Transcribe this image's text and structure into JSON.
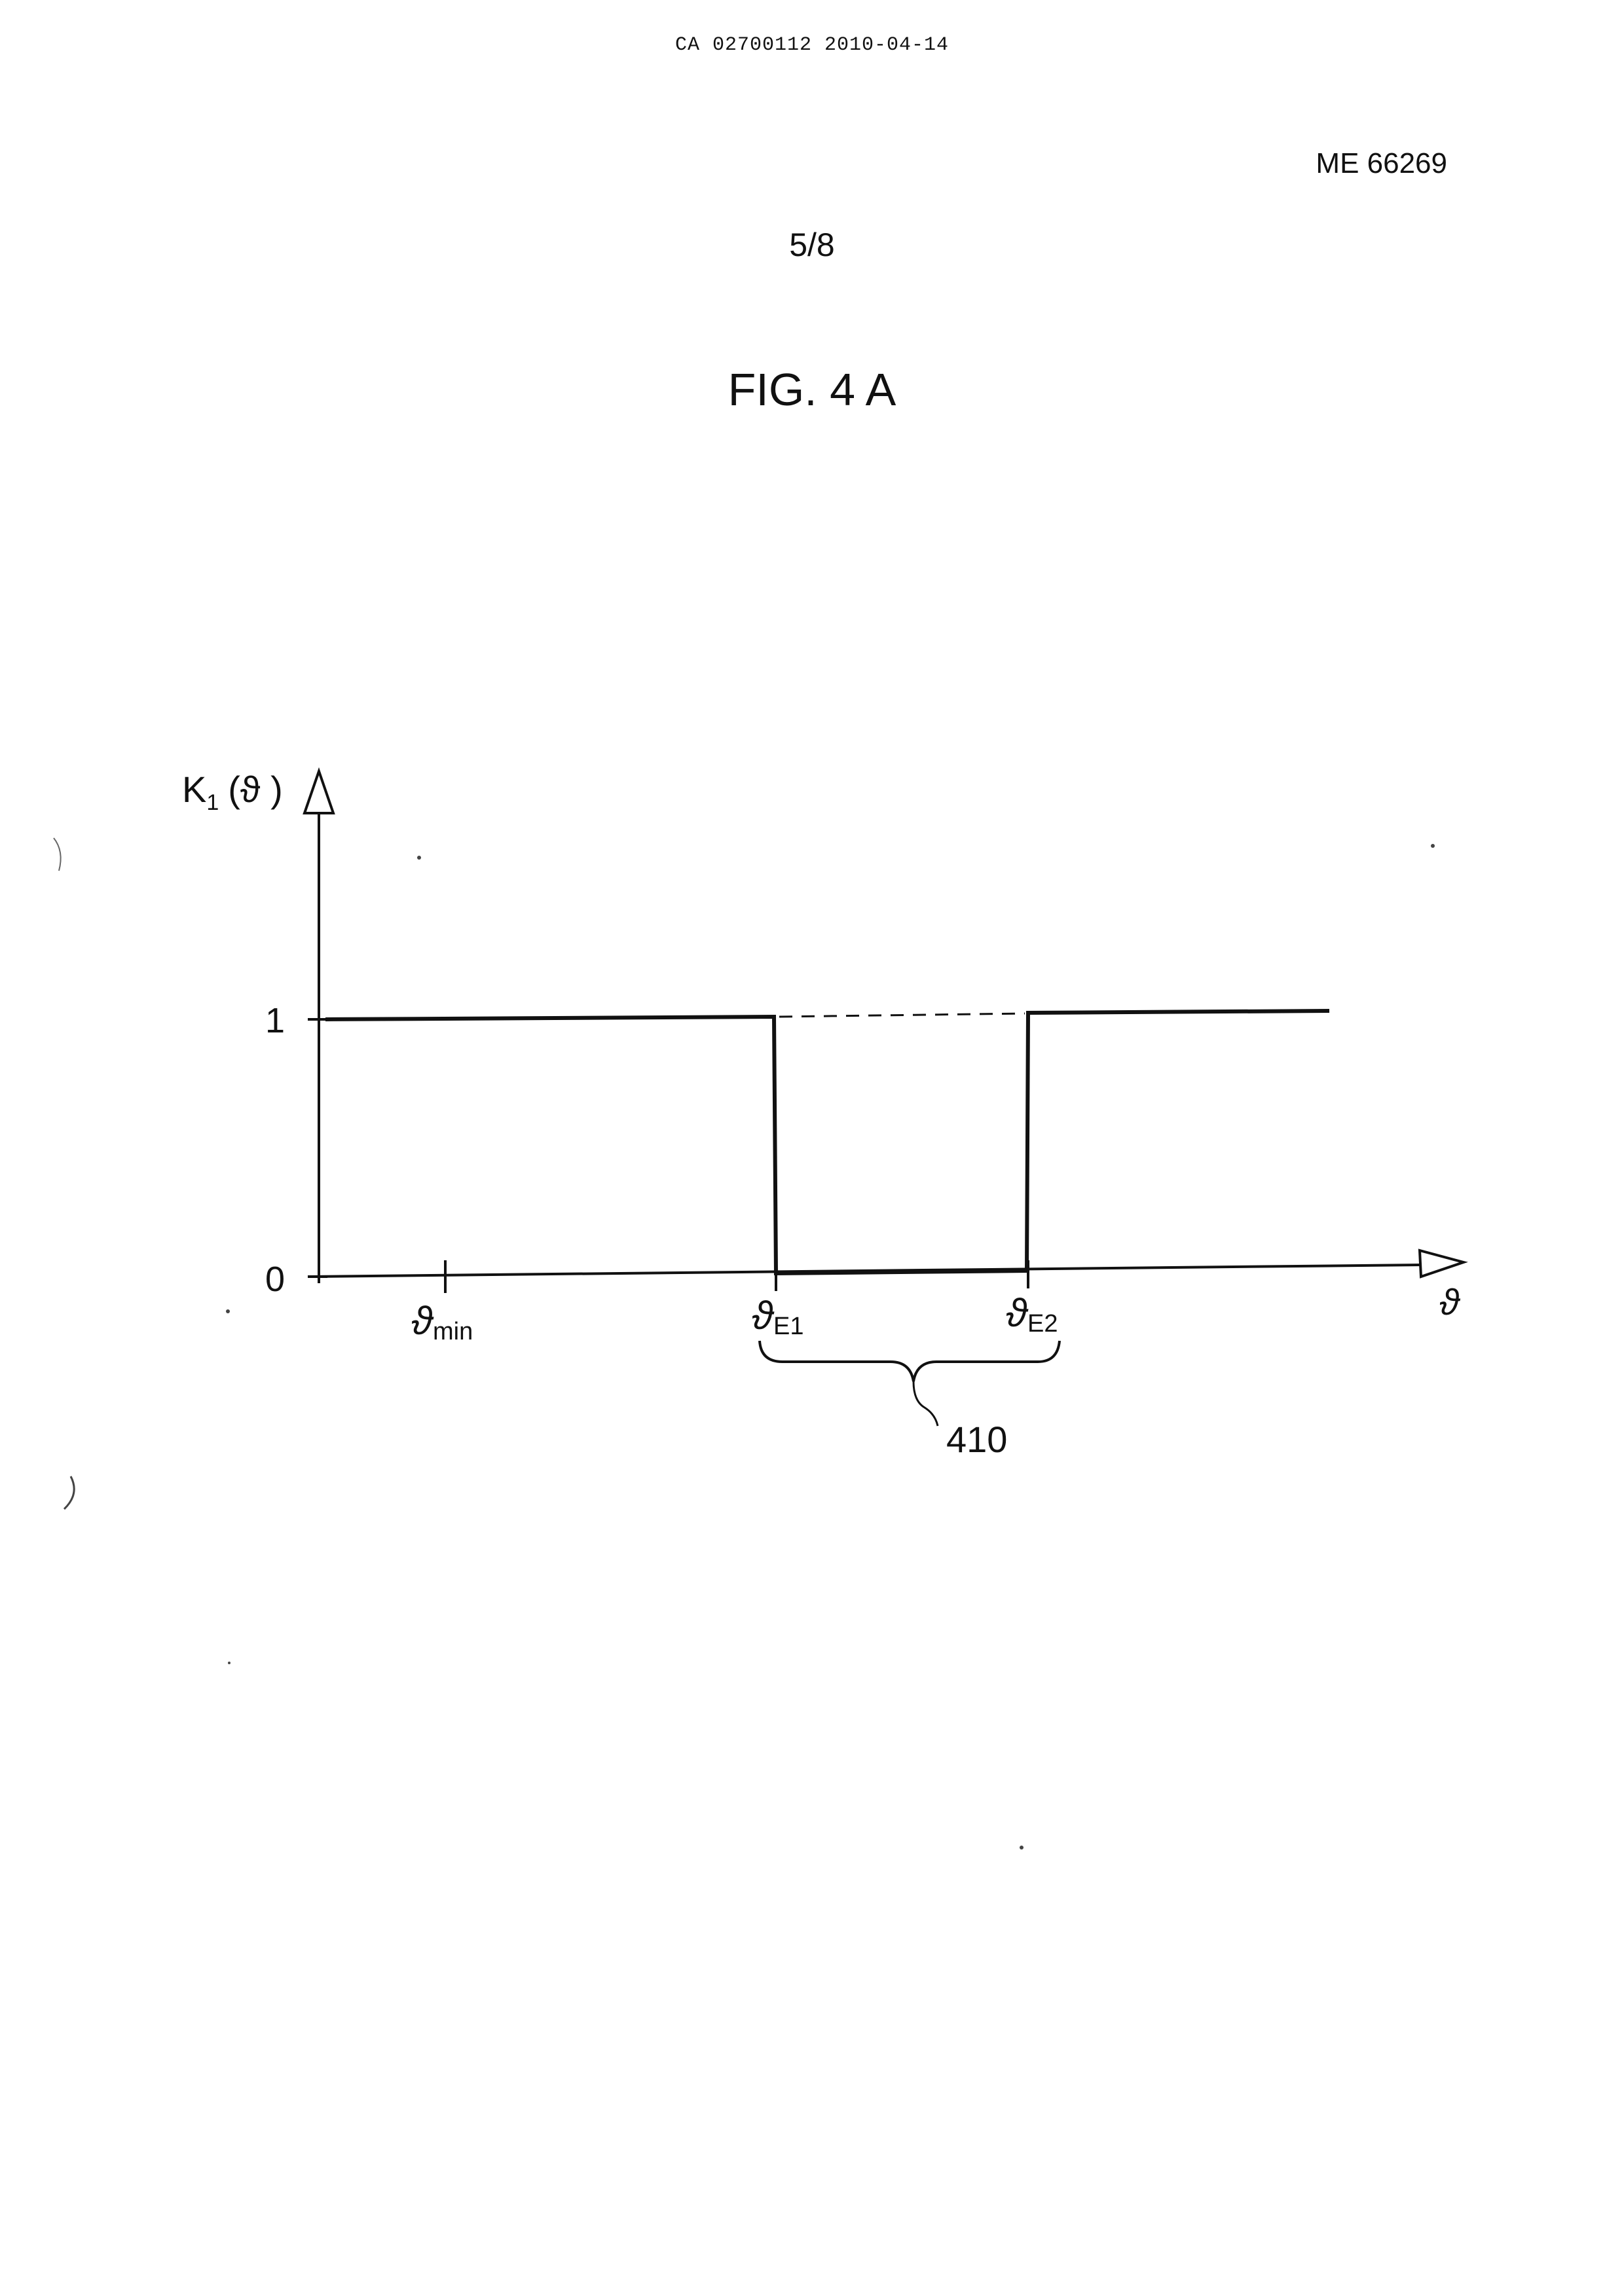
{
  "header": {
    "doc_id": "CA 02700112 2010-04-14",
    "reference": "ME 66269",
    "sheet": "5/8",
    "figure_title": "FIG. 4 A"
  },
  "diagram": {
    "y_axis": {
      "label": "K",
      "label_sub": "1",
      "label_arg": "(ϑ )",
      "ticks": [
        "1",
        "0"
      ]
    },
    "x_axis": {
      "label": "ϑ",
      "ticks": [
        {
          "base": "ϑ",
          "sub": "min"
        },
        {
          "base": "ϑ",
          "sub": "E1"
        },
        {
          "base": "ϑ",
          "sub": "E2"
        }
      ]
    },
    "brace_label": "410"
  }
}
